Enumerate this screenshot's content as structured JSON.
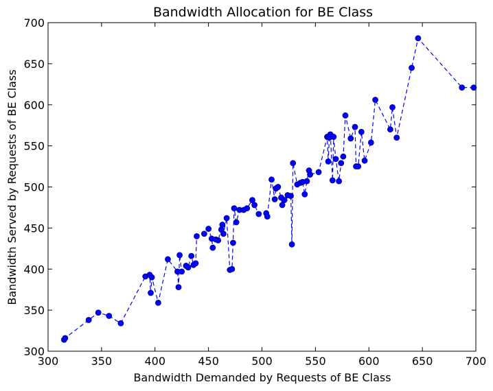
{
  "chart_data": {
    "type": "line",
    "title": "Bandwidth Allocation for BE Class",
    "xlabel": "Bandwidth Demanded by Requests of BE Class",
    "ylabel": "Bandwidth Served by Requests of BE Class",
    "xlim": [
      300,
      700
    ],
    "ylim": [
      300,
      700
    ],
    "xticks": [
      300,
      350,
      400,
      450,
      500,
      550,
      600,
      650,
      700
    ],
    "yticks": [
      300,
      350,
      400,
      450,
      500,
      550,
      600,
      650,
      700
    ],
    "grid": false,
    "line_style": "dashed",
    "marker": "circle",
    "color": "#0000ff",
    "series": [
      {
        "x": [
          315,
          316,
          338,
          347,
          357,
          368,
          391,
          395,
          396,
          397,
          403,
          412,
          421,
          422,
          423,
          425,
          429,
          431,
          434,
          436,
          438,
          439,
          446,
          450,
          453,
          454,
          457,
          459,
          462,
          463,
          464,
          467,
          470,
          472,
          473,
          474,
          476,
          479,
          483,
          486,
          491,
          493,
          497,
          504,
          505,
          509,
          512,
          513,
          514,
          515,
          518,
          519,
          521,
          524,
          527,
          528,
          529,
          533,
          536,
          538,
          540,
          542,
          544,
          545,
          553,
          561,
          562,
          563,
          564,
          566,
          567,
          569,
          572,
          574,
          576,
          578,
          583,
          587,
          588,
          590,
          593,
          596,
          602,
          606,
          620,
          622,
          626,
          640,
          646,
          687,
          698
        ],
        "y": [
          314,
          316,
          338,
          347,
          343,
          334,
          391,
          393,
          371,
          390,
          359,
          412,
          397,
          378,
          417,
          397,
          404,
          402,
          416,
          405,
          407,
          440,
          443,
          449,
          437,
          426,
          436,
          435,
          448,
          454,
          443,
          462,
          399,
          400,
          432,
          474,
          457,
          472,
          472,
          474,
          484,
          478,
          467,
          468,
          464,
          509,
          485,
          498,
          499,
          500,
          487,
          478,
          484,
          490,
          489,
          430,
          529,
          503,
          505,
          506,
          491,
          507,
          520,
          515,
          518,
          561,
          531,
          560,
          564,
          508,
          561,
          534,
          507,
          529,
          537,
          587,
          559,
          573,
          525,
          525,
          567,
          532,
          554,
          606,
          570,
          597,
          560,
          645,
          681,
          621,
          621
        ]
      }
    ]
  }
}
